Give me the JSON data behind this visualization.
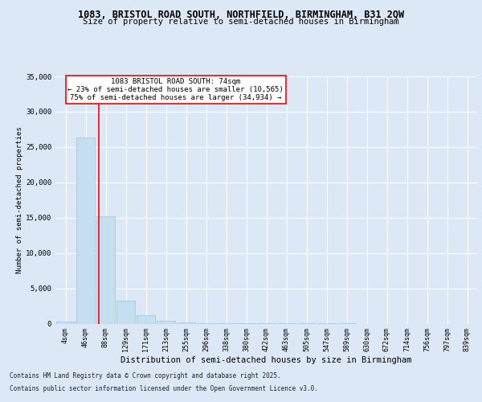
{
  "title_line1": "1083, BRISTOL ROAD SOUTH, NORTHFIELD, BIRMINGHAM, B31 2QW",
  "title_line2": "Size of property relative to semi-detached houses in Birmingham",
  "xlabel": "Distribution of semi-detached houses by size in Birmingham",
  "ylabel": "Number of semi-detached properties",
  "bar_labels": [
    "4sqm",
    "46sqm",
    "88sqm",
    "129sqm",
    "171sqm",
    "213sqm",
    "255sqm",
    "296sqm",
    "338sqm",
    "380sqm",
    "422sqm",
    "463sqm",
    "505sqm",
    "547sqm",
    "589sqm",
    "630sqm",
    "672sqm",
    "714sqm",
    "756sqm",
    "797sqm",
    "839sqm"
  ],
  "bar_values": [
    300,
    26300,
    15200,
    3200,
    1200,
    450,
    200,
    100,
    30,
    10,
    5,
    3,
    2,
    1,
    1,
    0,
    0,
    0,
    0,
    0,
    0
  ],
  "bar_color": "#c5dff0",
  "bar_edge_color": "#a0c4e0",
  "background_color": "#dce8f5",
  "property_label": "1083 BRISTOL ROAD SOUTH: 74sqm",
  "pct_smaller": "23% of semi-detached houses are smaller (10,565)",
  "pct_larger": "75% of semi-detached houses are larger (34,934)",
  "ylim": [
    0,
    35000
  ],
  "yticks": [
    0,
    5000,
    10000,
    15000,
    20000,
    25000,
    30000,
    35000
  ],
  "footnote1": "Contains HM Land Registry data © Crown copyright and database right 2025.",
  "footnote2": "Contains public sector information licensed under the Open Government Licence v3.0."
}
